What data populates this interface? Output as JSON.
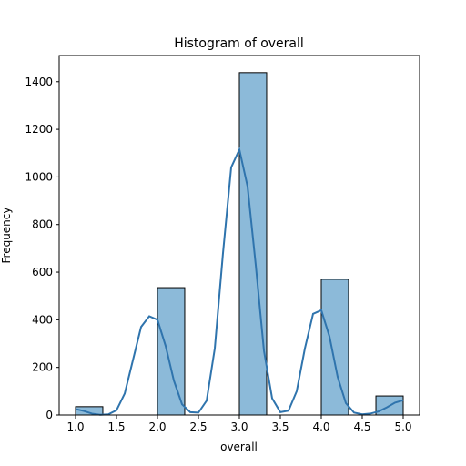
{
  "chart_data": {
    "type": "bar",
    "title": "Histogram of overall",
    "xlabel": "overall",
    "ylabel": "Frequency",
    "xlim": [
      0.8,
      5.2
    ],
    "ylim": [
      0,
      1510
    ],
    "xticks": [
      1.0,
      1.5,
      2.0,
      2.5,
      3.0,
      3.5,
      4.0,
      4.5,
      5.0
    ],
    "xtick_labels": [
      "1.0",
      "1.5",
      "2.0",
      "2.5",
      "3.0",
      "3.5",
      "4.0",
      "4.5",
      "5.0"
    ],
    "yticks": [
      0,
      200,
      400,
      600,
      800,
      1000,
      1200,
      1400
    ],
    "ytick_labels": [
      "0",
      "200",
      "400",
      "600",
      "800",
      "1000",
      "1200",
      "1400"
    ],
    "grid": false,
    "bin_width": 0.333,
    "bars": [
      {
        "x0": 1.0,
        "x1": 1.333,
        "value": 35
      },
      {
        "x0": 2.0,
        "x1": 2.333,
        "value": 535
      },
      {
        "x0": 3.0,
        "x1": 3.333,
        "value": 1438
      },
      {
        "x0": 4.0,
        "x1": 4.333,
        "value": 570
      },
      {
        "x0": 4.667,
        "x1": 5.0,
        "value": 80
      }
    ],
    "kde": {
      "x": [
        1.0,
        1.1,
        1.2,
        1.3,
        1.4,
        1.5,
        1.6,
        1.7,
        1.8,
        1.9,
        2.0,
        2.1,
        2.2,
        2.3,
        2.4,
        2.5,
        2.6,
        2.7,
        2.8,
        2.9,
        3.0,
        3.1,
        3.2,
        3.3,
        3.4,
        3.5,
        3.6,
        3.7,
        3.8,
        3.9,
        4.0,
        4.1,
        4.2,
        4.3,
        4.4,
        4.5,
        4.6,
        4.7,
        4.8,
        4.9,
        5.0
      ],
      "y": [
        25,
        17,
        6,
        1,
        3,
        20,
        90,
        230,
        370,
        415,
        400,
        290,
        145,
        45,
        12,
        10,
        60,
        280,
        680,
        1040,
        1115,
        960,
        630,
        270,
        70,
        12,
        18,
        100,
        280,
        425,
        440,
        330,
        160,
        50,
        10,
        3,
        6,
        15,
        32,
        52,
        62
      ]
    },
    "colors": {
      "bar_fill": "#8cbad9",
      "bar_edge": "#000000",
      "kde_line": "#2f74ad"
    }
  }
}
